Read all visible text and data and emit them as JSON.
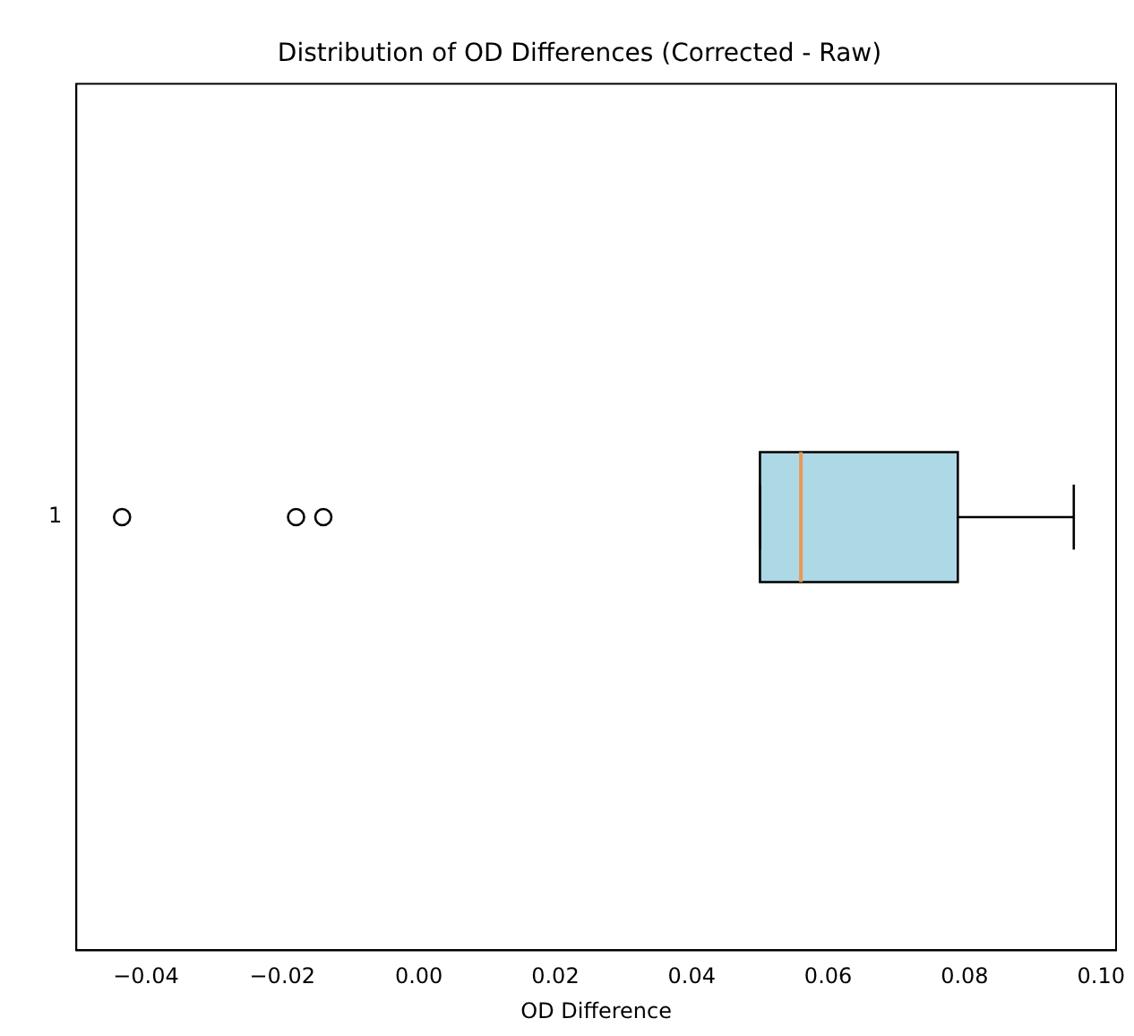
{
  "chart_data": {
    "type": "box",
    "title": "Distribution of OD Differences (Corrected - Raw)",
    "xlabel": "OD Difference",
    "categories": [
      "1"
    ],
    "orientation": "horizontal",
    "color": "#add8e6",
    "marker": "circle",
    "grid": false,
    "legend": false,
    "boxes": [
      {
        "low": 0.05,
        "q1": 0.05,
        "median": 0.056,
        "q3": 0.079,
        "high": 0.096,
        "outliers": [
          -0.0435,
          -0.018,
          -0.014
        ]
      }
    ],
    "xlim": [
      -0.0502,
      0.1022
    ],
    "xticks": [
      {
        "value": -0.04,
        "label": "−0.04"
      },
      {
        "value": -0.02,
        "label": "−0.02"
      },
      {
        "value": 0,
        "label": "0.00"
      },
      {
        "value": 0.02,
        "label": "0.02"
      },
      {
        "value": 0.04,
        "label": "0.04"
      },
      {
        "value": 0.06,
        "label": "0.06"
      },
      {
        "value": 0.08,
        "label": "0.08"
      },
      {
        "value": 0.1,
        "label": "0.10"
      }
    ]
  }
}
